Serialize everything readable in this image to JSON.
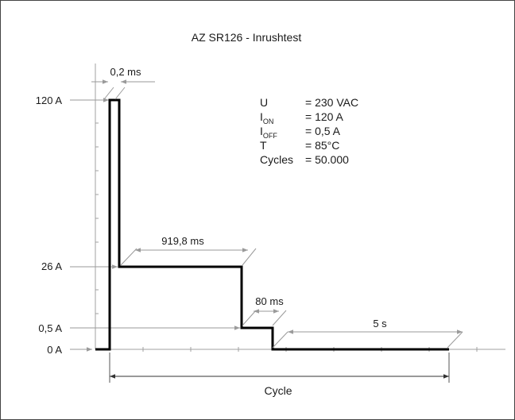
{
  "chart_data": {
    "type": "line",
    "title": "AZ SR126 - Inrushtest",
    "y_tick_labels": [
      "120 A",
      "26 A",
      "0,5 A",
      "0 A"
    ],
    "profile": [
      {
        "t_ms": 0,
        "i_a": 0
      },
      {
        "t_ms": 0,
        "i_a": 120
      },
      {
        "t_ms": 0.2,
        "i_a": 120
      },
      {
        "t_ms": 0.2,
        "i_a": 26
      },
      {
        "t_ms": 920,
        "i_a": 26
      },
      {
        "t_ms": 920,
        "i_a": 0.5
      },
      {
        "t_ms": 1000,
        "i_a": 0.5
      },
      {
        "t_ms": 1000,
        "i_a": 0
      },
      {
        "t_ms": 6000,
        "i_a": 0
      }
    ],
    "duration_labels": {
      "on": "0,2 ms",
      "hold": "919,8 ms",
      "off": "80 ms",
      "pause": "5 s",
      "cycle": "Cycle"
    },
    "params": [
      {
        "name": "U",
        "sub": "",
        "value": "= 230 VAC"
      },
      {
        "name": "I",
        "sub": "ON",
        "value": "= 120 A"
      },
      {
        "name": "I",
        "sub": "OFF",
        "value": "= 0,5 A"
      },
      {
        "name": "T",
        "sub": "",
        "value": "= 85°C"
      },
      {
        "name": "Cycles",
        "sub": "",
        "value": "= 50.000"
      }
    ],
    "grid": false,
    "colors": {
      "waveform": "#000000",
      "dimension": "#9a9a9a",
      "axis": "#8a8a8a"
    }
  }
}
